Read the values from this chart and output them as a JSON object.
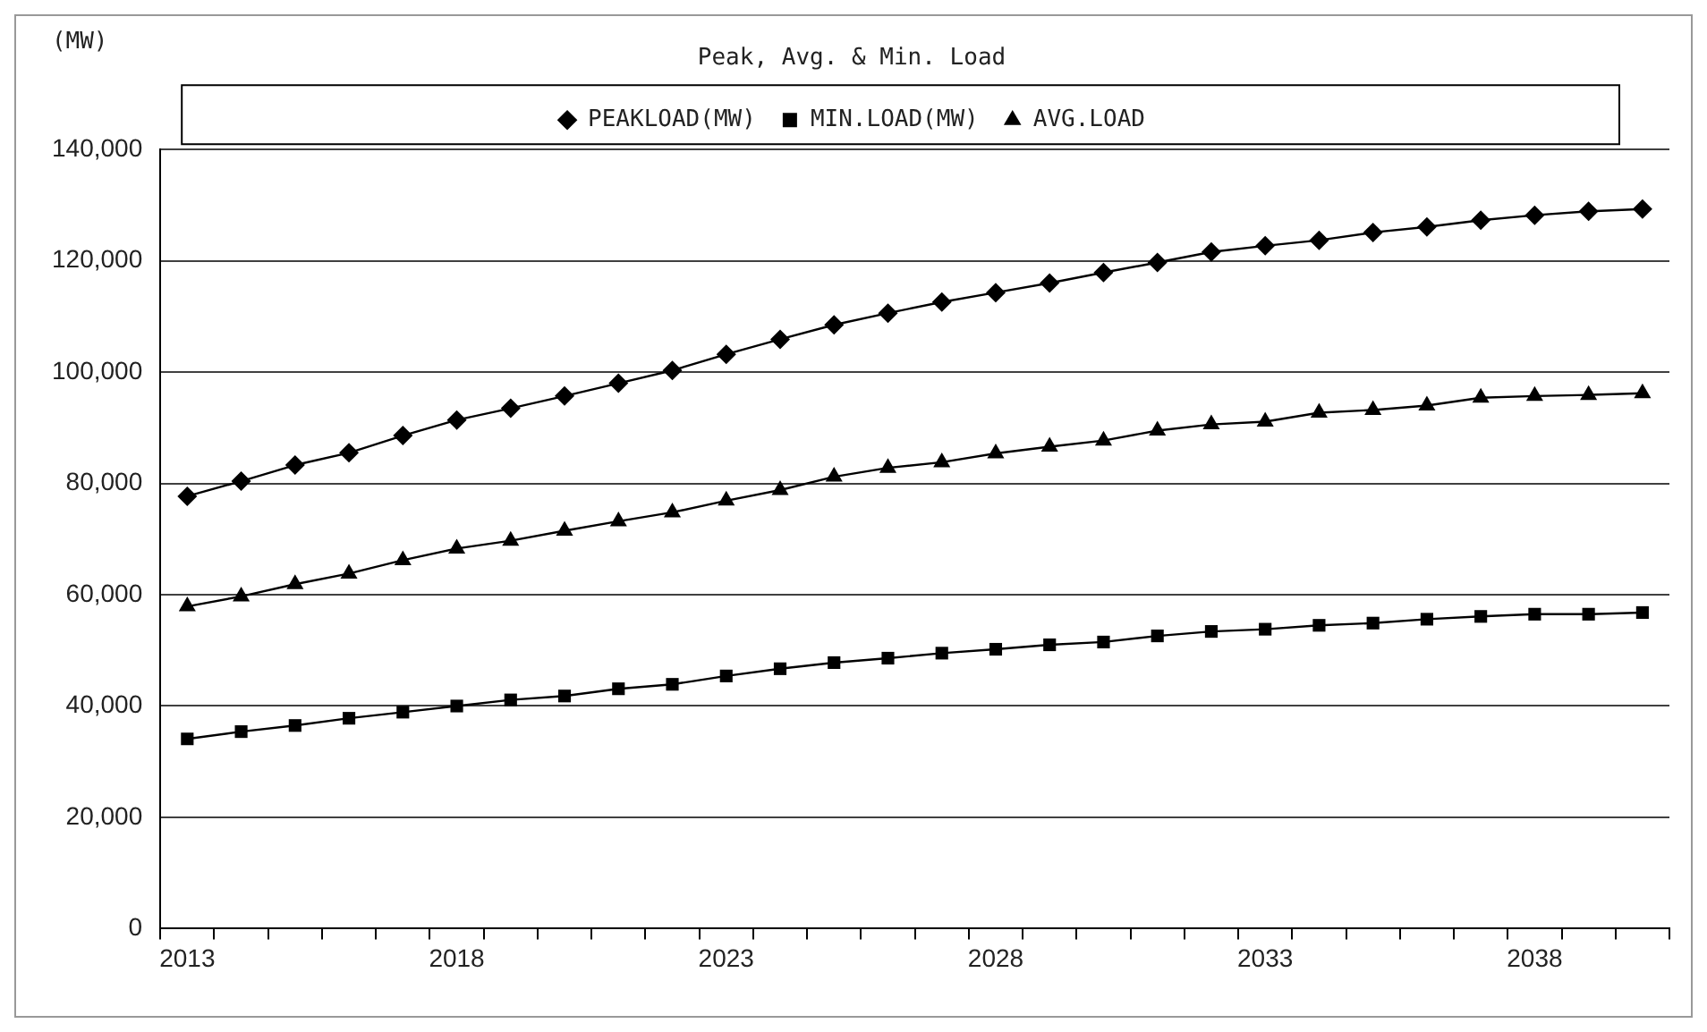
{
  "chart_data": {
    "type": "line",
    "title": "Peak, Avg. & Min. Load",
    "ylabel": "(MW)",
    "categories": [
      "2013",
      null,
      null,
      null,
      null,
      "2018",
      null,
      null,
      null,
      null,
      "2023",
      null,
      null,
      null,
      null,
      "2028",
      null,
      null,
      null,
      null,
      "2033",
      null,
      null,
      null,
      null,
      "2038",
      null,
      null
    ],
    "series": [
      {
        "name": "PEAKLOAD(MW)",
        "color": "#000000",
        "marker": "diamond",
        "values": [
          77700,
          80400,
          83300,
          85500,
          88600,
          91400,
          93500,
          95700,
          98000,
          100300,
          103200,
          105900,
          108500,
          110600,
          112600,
          114300,
          116000,
          117900,
          119700,
          121600,
          122700,
          123700,
          125100,
          126100,
          127300,
          128200,
          128900,
          129300
        ]
      },
      {
        "name": "MIN.LOAD(MW)",
        "color": "#000000",
        "marker": "square",
        "values": [
          34100,
          35400,
          36500,
          37800,
          38900,
          40000,
          41100,
          41800,
          43100,
          43900,
          45400,
          46700,
          47800,
          48600,
          49500,
          50200,
          51000,
          51500,
          52600,
          53400,
          53800,
          54500,
          54900,
          55600,
          56100,
          56500,
          56500,
          56800
        ]
      },
      {
        "name": "AVG.LOAD",
        "color": "#000000",
        "marker": "triangle",
        "values": [
          57900,
          59700,
          61900,
          63800,
          66200,
          68300,
          69700,
          71500,
          73200,
          74800,
          76900,
          78800,
          81200,
          82800,
          83800,
          85400,
          86600,
          87700,
          89500,
          90600,
          91100,
          92700,
          93200,
          94000,
          95400,
          95700,
          95900,
          96200
        ]
      }
    ],
    "ylim": [
      0,
      140000
    ],
    "yticks": [
      0,
      {
        "value": 20000,
        "label": "20,000"
      },
      {
        "value": 40000,
        "label": "40,000"
      },
      {
        "value": 60000,
        "label": "60,000"
      },
      {
        "value": 80000,
        "label": "80,000"
      },
      {
        "value": 100000,
        "label": "100,000"
      },
      {
        "value": 120000,
        "label": "120,000"
      },
      {
        "value": 140000,
        "label": "140,000"
      }
    ],
    "grid": "y",
    "legend": "top",
    "line_style": "solid"
  }
}
